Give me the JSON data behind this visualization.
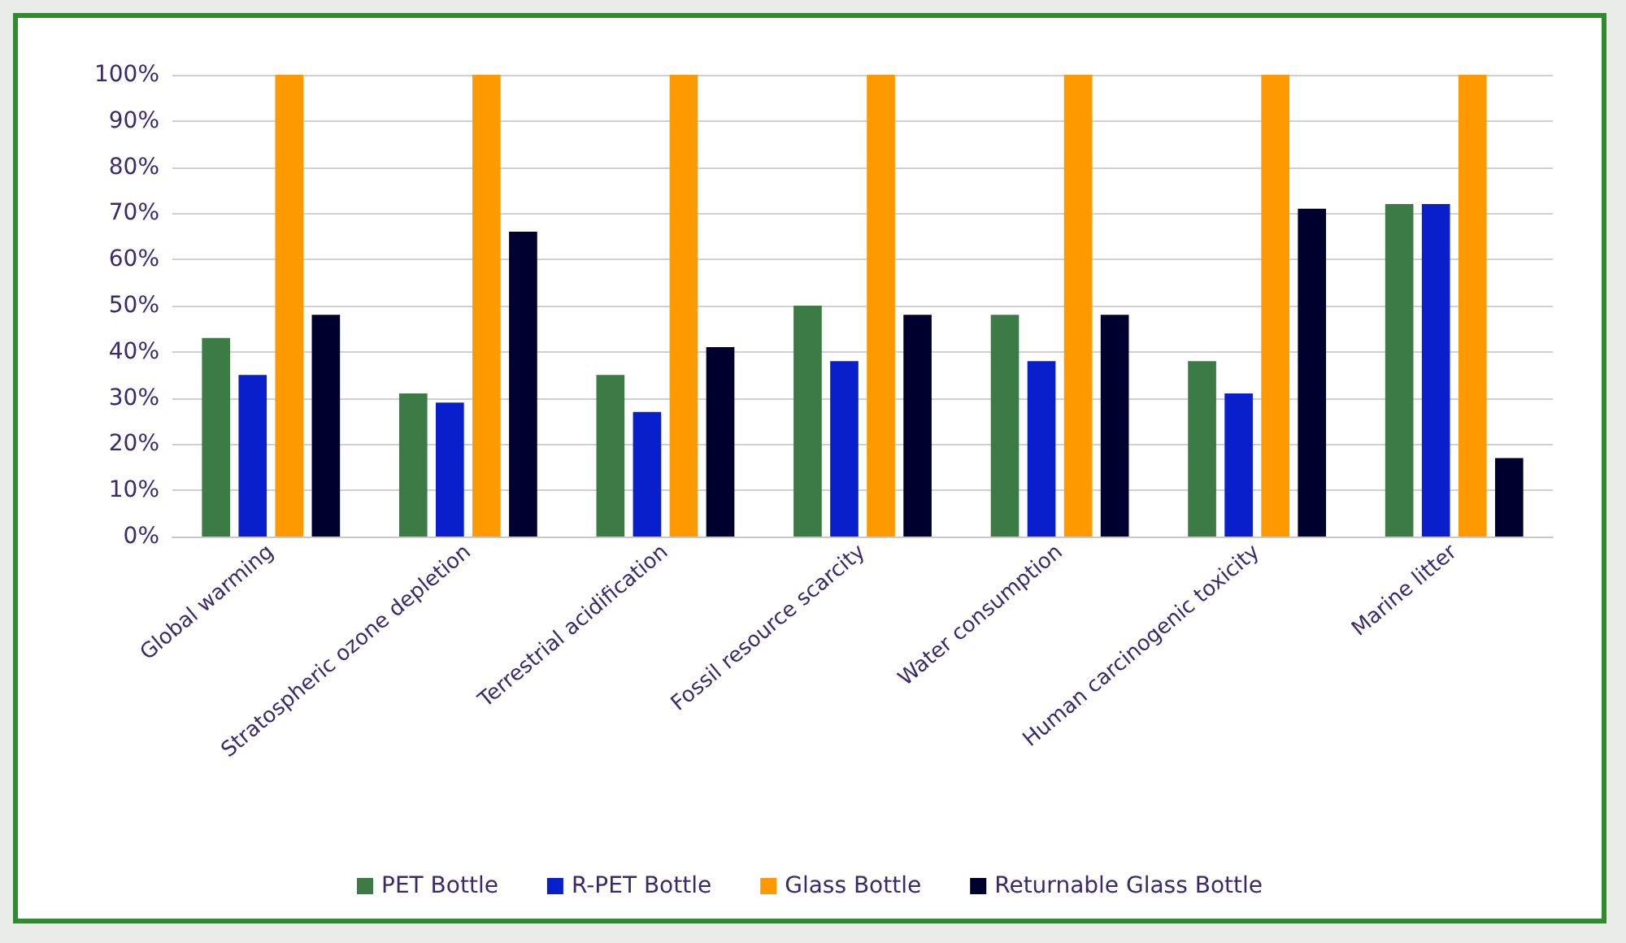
{
  "chart_data": {
    "type": "bar",
    "categories": [
      "Global warming",
      "Stratospheric ozone depletion",
      "Terrestrial acidification",
      "Fossil resource scarcity",
      "Water consumption",
      "Human carcinogenic toxicity",
      "Marine litter"
    ],
    "series": [
      {
        "name": "PET Bottle",
        "color": "#3d7b46",
        "values": [
          43,
          31,
          35,
          50,
          48,
          38,
          72
        ]
      },
      {
        "name": "R-PET Bottle",
        "color": "#0a1fcc",
        "values": [
          35,
          29,
          27,
          38,
          38,
          31,
          72
        ]
      },
      {
        "name": "Glass Bottle",
        "color": "#ff9900",
        "values": [
          100,
          100,
          100,
          100,
          100,
          100,
          100
        ]
      },
      {
        "name": "Returnable Glass Bottle",
        "color": "#00002e",
        "values": [
          48,
          66,
          41,
          48,
          48,
          71,
          17
        ]
      }
    ],
    "ylim": [
      0,
      100
    ],
    "yticks": [
      {
        "value": 0,
        "label": "0%"
      },
      {
        "value": 10,
        "label": "10%"
      },
      {
        "value": 20,
        "label": "20%"
      },
      {
        "value": 30,
        "label": "30%"
      },
      {
        "value": 40,
        "label": "40%"
      },
      {
        "value": 50,
        "label": "50%"
      },
      {
        "value": 60,
        "label": "60%"
      },
      {
        "value": 70,
        "label": "70%"
      },
      {
        "value": 80,
        "label": "80%"
      },
      {
        "value": 90,
        "label": "90%"
      },
      {
        "value": 100,
        "label": "100%"
      }
    ],
    "grid": "y",
    "legend": "bottom"
  }
}
